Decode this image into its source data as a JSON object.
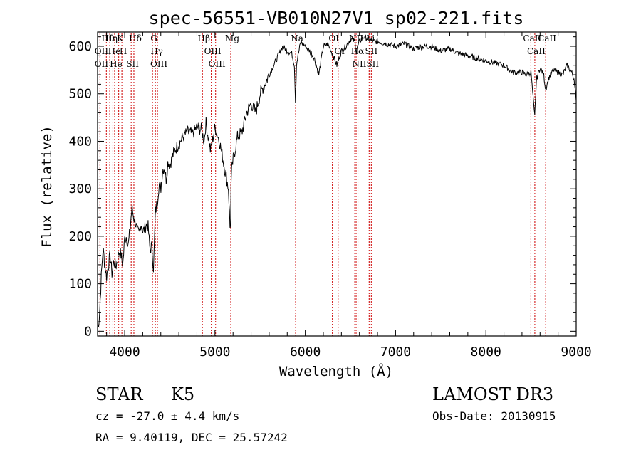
{
  "chart_data": {
    "type": "line",
    "title": "spec-56551-VB010N27V1_sp02-221.fits",
    "xlabel": "Wavelength (Å)",
    "ylabel": "Flux (relative)",
    "xlim": [
      3700,
      9000
    ],
    "ylim": [
      -10,
      630
    ],
    "xticks": [
      4000,
      5000,
      6000,
      7000,
      8000,
      9000
    ],
    "yticks": [
      0,
      100,
      200,
      300,
      400,
      500,
      600
    ],
    "series": [
      {
        "name": "flux",
        "x": [
          3700,
          3720,
          3740,
          3760,
          3780,
          3800,
          3820,
          3840,
          3860,
          3880,
          3900,
          3920,
          3940,
          3960,
          3980,
          4000,
          4020,
          4040,
          4060,
          4080,
          4100,
          4120,
          4140,
          4160,
          4180,
          4200,
          4220,
          4240,
          4260,
          4280,
          4300,
          4320,
          4340,
          4360,
          4380,
          4400,
          4420,
          4440,
          4460,
          4480,
          4500,
          4550,
          4600,
          4650,
          4700,
          4750,
          4800,
          4850,
          4880,
          4900,
          4950,
          5000,
          5050,
          5100,
          5150,
          5170,
          5180,
          5200,
          5250,
          5300,
          5350,
          5400,
          5450,
          5500,
          5550,
          5600,
          5650,
          5700,
          5750,
          5800,
          5850,
          5880,
          5893,
          5900,
          5950,
          6000,
          6050,
          6100,
          6150,
          6200,
          6250,
          6300,
          6350,
          6400,
          6450,
          6500,
          6550,
          6563,
          6600,
          6650,
          6700,
          6750,
          6800,
          6900,
          7000,
          7100,
          7200,
          7300,
          7400,
          7500,
          7600,
          7700,
          7800,
          7900,
          8000,
          8100,
          8200,
          8300,
          8400,
          8450,
          8500,
          8540,
          8560,
          8600,
          8640,
          8662,
          8700,
          8750,
          8800,
          8850,
          8900,
          8950,
          8980,
          9000
        ],
        "values": [
          5,
          30,
          110,
          175,
          140,
          115,
          140,
          160,
          120,
          150,
          135,
          150,
          170,
          160,
          140,
          195,
          200,
          180,
          215,
          260,
          240,
          230,
          210,
          205,
          230,
          210,
          215,
          225,
          220,
          170,
          180,
          130,
          250,
          270,
          310,
          300,
          340,
          345,
          320,
          360,
          350,
          380,
          395,
          410,
          420,
          415,
          430,
          425,
          400,
          440,
          380,
          430,
          400,
          350,
          300,
          200,
          330,
          360,
          410,
          420,
          460,
          480,
          460,
          500,
          520,
          540,
          560,
          580,
          600,
          590,
          585,
          560,
          470,
          560,
          610,
          600,
          590,
          575,
          540,
          600,
          605,
          585,
          560,
          590,
          600,
          615,
          610,
          590,
          610,
          620,
          615,
          610,
          610,
          605,
          600,
          605,
          595,
          600,
          600,
          590,
          595,
          585,
          580,
          575,
          570,
          565,
          560,
          545,
          545,
          540,
          545,
          450,
          530,
          555,
          540,
          510,
          535,
          550,
          545,
          540,
          560,
          545,
          530,
          480
        ]
      }
    ],
    "line_color": "#000000",
    "marker_color": "#cc0000",
    "line_markers": [
      {
        "wl": 3797,
        "label": "Hθ"
      },
      {
        "wl": 3727,
        "label": "OII"
      },
      {
        "wl": 3727,
        "label": "OII"
      },
      {
        "wl": 3835,
        "label": "Hη"
      },
      {
        "wl": 3869,
        "label": "He"
      },
      {
        "wl": 3889,
        "label": "He"
      },
      {
        "wl": 3934,
        "label": "K"
      },
      {
        "wl": 3969,
        "label": "H"
      },
      {
        "wl": 4072,
        "label": "SII"
      },
      {
        "wl": 4102,
        "label": "Hδ"
      },
      {
        "wl": 4308,
        "label": "G"
      },
      {
        "wl": 4340,
        "label": "Hγ"
      },
      {
        "wl": 4363,
        "label": "OIII"
      },
      {
        "wl": 4861,
        "label": "Hβ"
      },
      {
        "wl": 4959,
        "label": "OIII"
      },
      {
        "wl": 5007,
        "label": "OIII"
      },
      {
        "wl": 5175,
        "label": "Mg"
      },
      {
        "wl": 5893,
        "label": "Na"
      },
      {
        "wl": 6300,
        "label": "OI"
      },
      {
        "wl": 6364,
        "label": "OI"
      },
      {
        "wl": 6548,
        "label": "NII"
      },
      {
        "wl": 6563,
        "label": "Hα"
      },
      {
        "wl": 6583,
        "label": "NII"
      },
      {
        "wl": 6707,
        "label": "Li"
      },
      {
        "wl": 6716,
        "label": "SII"
      },
      {
        "wl": 6731,
        "label": "SII"
      },
      {
        "wl": 8498,
        "label": "CaII"
      },
      {
        "wl": 8542,
        "label": "CaII"
      },
      {
        "wl": 8662,
        "label": "CaII"
      }
    ]
  },
  "info": {
    "class_text": "STAR",
    "subclass_text": "K5",
    "survey": "LAMOST DR3",
    "cz": "cz = -27.0 ± 4.4 km/s",
    "obs_date": "Obs-Date: 20130915",
    "radec": "RA =   9.40119, DEC =  25.57242"
  }
}
